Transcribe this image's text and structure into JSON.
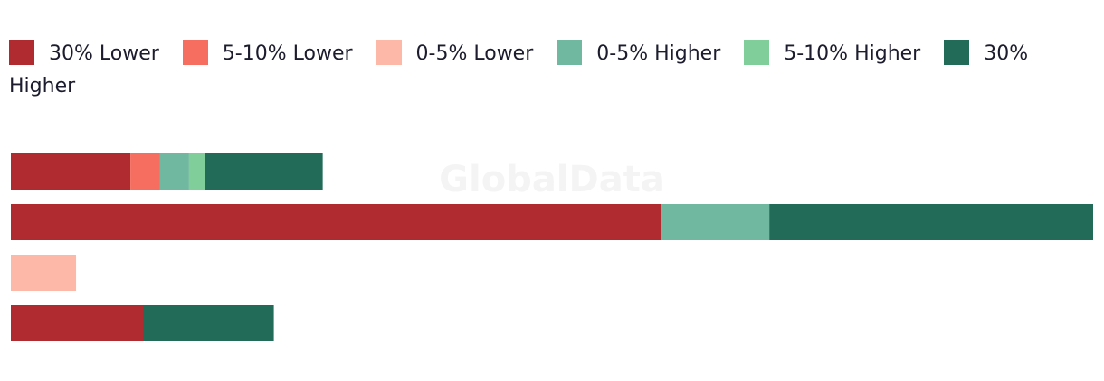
{
  "chart_data": {
    "type": "stacked-bar-horizontal",
    "watermark": "GlobalData",
    "categories": [
      null,
      null,
      null,
      null
    ],
    "series": [
      {
        "name": "30% Lower",
        "color": "#b02b30",
        "values": [
          11,
          59.8,
          null,
          12.2
        ]
      },
      {
        "name": "5-10% Lower",
        "color": "#f56e60",
        "values": [
          2.7,
          null,
          null,
          null
        ]
      },
      {
        "name": "0-5% Lower",
        "color": "#fdb8a7",
        "values": [
          null,
          null,
          6,
          null
        ]
      },
      {
        "name": "0-5% Higher",
        "color": "#71b8a0",
        "values": [
          2.7,
          10,
          null,
          null
        ]
      },
      {
        "name": "5-10% Higher",
        "color": "#80cf9a",
        "values": [
          1.5,
          null,
          null,
          null
        ]
      },
      {
        "name": "30% Higher",
        "color": "#216b58",
        "values": [
          10.8,
          29.8,
          null,
          12
        ]
      }
    ]
  }
}
